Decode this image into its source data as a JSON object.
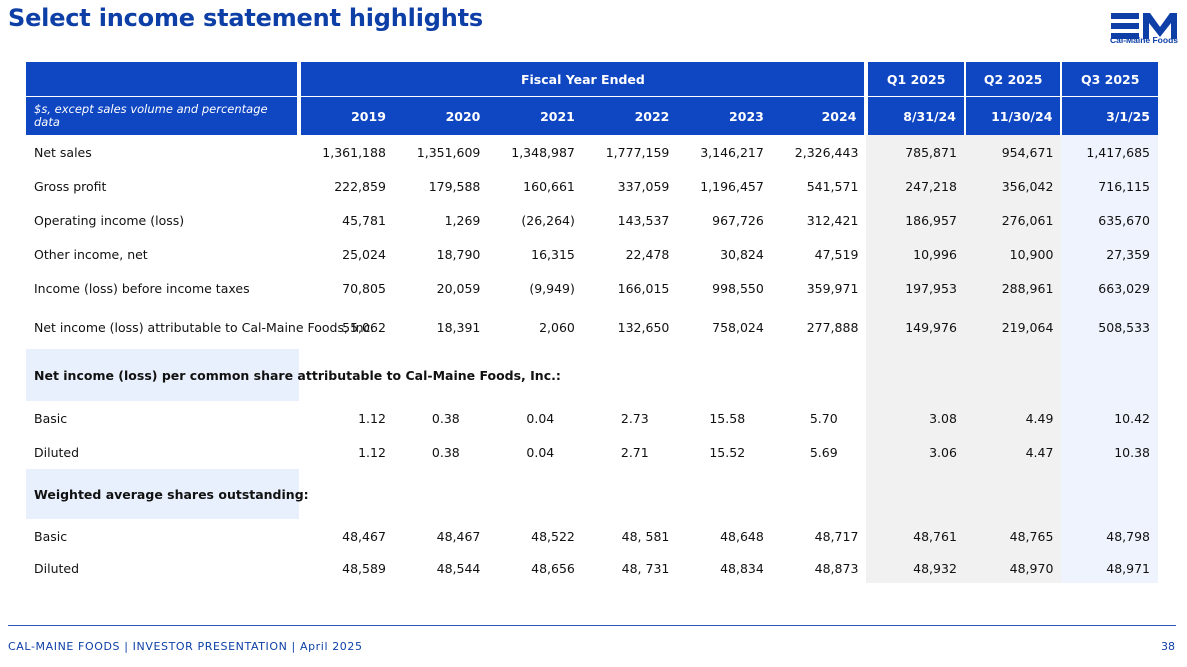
{
  "title": "Select income statement highlights",
  "logo": {
    "mark": "EM",
    "caption": "Cal-Maine Foods"
  },
  "header": {
    "fiscal_group": "Fiscal Year Ended",
    "unit_label": "$s, except sales volume and percentage data",
    "quarters": [
      "Q1 2025",
      "Q2 2025",
      "Q3 2025"
    ],
    "columns": [
      "2019",
      "2020",
      "2021",
      "2022",
      "2023",
      "2024",
      "8/31/24",
      "11/30/24",
      "3/1/25"
    ]
  },
  "rows": [
    {
      "label": "Net sales",
      "values": [
        "1,361,188",
        "1,351,609",
        "1,348,987",
        "1,777,159",
        "3,146,217",
        "2,326,443",
        "785,871",
        "954,671",
        "1,417,685"
      ]
    },
    {
      "label": "Gross profit",
      "values": [
        "222,859",
        "179,588",
        "160,661",
        "337,059",
        "1,196,457",
        "541,571",
        "247,218",
        "356,042",
        "716,115"
      ]
    },
    {
      "label": "Operating income (loss)",
      "values": [
        "45,781",
        "1,269",
        "(26,264)",
        "143,537",
        "967,726",
        "312,421",
        "186,957",
        "276,061",
        "635,670"
      ]
    },
    {
      "label": "Other income, net",
      "values": [
        "25,024",
        "18,790",
        "16,315",
        "22,478",
        "30,824",
        "47,519",
        "10,996",
        "10,900",
        "27,359"
      ]
    },
    {
      "label": "Income (loss) before income taxes",
      "values": [
        "70,805",
        "20,059",
        "(9,949)",
        "166,015",
        "998,550",
        "359,971",
        "197,953",
        "288,961",
        "663,029"
      ]
    },
    {
      "label": "Net income (loss) attributable to Cal-Maine Foods, Inc.",
      "values": [
        "55,062",
        "18,391",
        "2,060",
        "132,650",
        "758,024",
        "277,888",
        "149,976",
        "219,064",
        "508,533"
      ]
    }
  ],
  "eps_section": {
    "title": "Net income (loss) per common share attributable to Cal-Maine Foods, Inc.:",
    "rows": [
      {
        "label": "Basic",
        "values": [
          "1.12",
          "0.38",
          "0.04",
          "2.73",
          "15.58",
          "5.70",
          "3.08",
          "4.49",
          "10.42"
        ]
      },
      {
        "label": "Diluted",
        "values": [
          "1.12",
          "0.38",
          "0.04",
          "2.71",
          "15.52",
          "5.69",
          "3.06",
          "4.47",
          "10.38"
        ]
      }
    ]
  },
  "shares_section": {
    "title": "Weighted average shares outstanding:",
    "rows": [
      {
        "label": "Basic",
        "values": [
          "48,467",
          "48,467",
          "48,522",
          "48, 581",
          "48,648",
          "48,717",
          "48,761",
          "48,765",
          "48,798"
        ]
      },
      {
        "label": "Diluted",
        "values": [
          "48,589",
          "48,544",
          "48,656",
          "48, 731",
          "48,834",
          "48,873",
          "48,932",
          "48,970",
          "48,971"
        ]
      }
    ]
  },
  "footer": {
    "left": "CAL-MAINE FOODS | INVESTOR PRESENTATION | April 2025",
    "page": "38"
  },
  "colors": {
    "brand_blue": "#0f46c2",
    "title_blue": "#0d3fa6",
    "quarter_shade": "#f1f1f1",
    "q3_shade": "#eef3fd",
    "section_shade": "#e9f0fd"
  }
}
